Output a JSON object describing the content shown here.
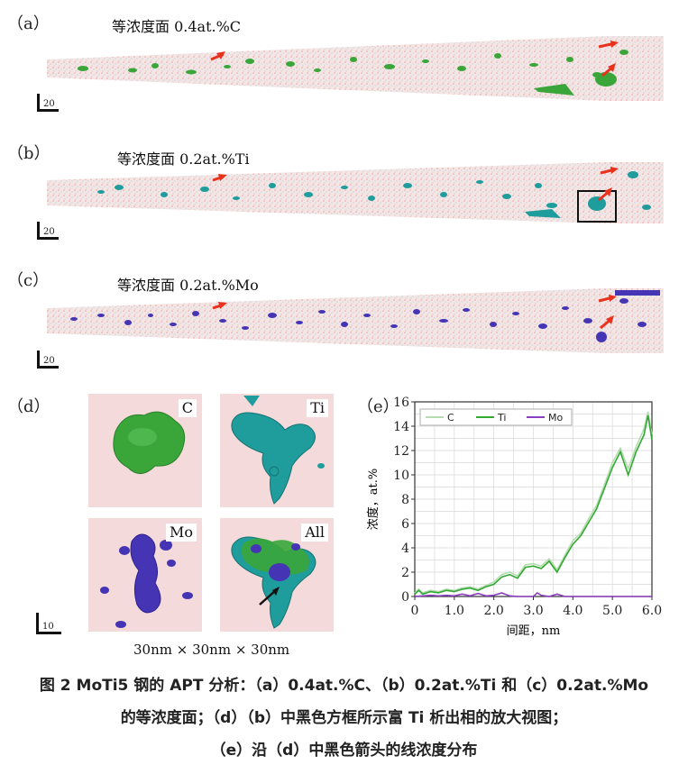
{
  "panels": {
    "a": {
      "letter": "（a）",
      "title": "等浓度面 0.4at.%C"
    },
    "b": {
      "letter": "（b）",
      "title": "等浓度面 0.2at.%Ti"
    },
    "c": {
      "letter": "（c）",
      "title": "等浓度面 0.2at.%Mo"
    },
    "d": {
      "letter": "（d）"
    },
    "e": {
      "letter": "（e）"
    }
  },
  "scale_a": "20",
  "scale_b": "20",
  "scale_c": "20",
  "scale_d": "10",
  "cubes": {
    "c": "C",
    "ti": "Ti",
    "mo": "Mo",
    "all": "All"
  },
  "cube_dims": "30nm × 30nm × 30nm",
  "colors": {
    "carbon": "#3aa63a",
    "titanium": "#1f9c9c",
    "molybdenum": "#4535b5",
    "arrow": "#e8321e",
    "matrix": "#f4d8d8"
  },
  "chart_data": {
    "type": "line",
    "xlabel": "间距，nm",
    "ylabel": "浓度，at.%",
    "xlim": [
      0,
      6
    ],
    "ylim": [
      0,
      16
    ],
    "xticks": [
      "0",
      "1.0",
      "2.0",
      "3.0",
      "4.0",
      "5.0",
      "6.0"
    ],
    "yticks": [
      "0",
      "2",
      "4",
      "6",
      "8",
      "10",
      "12",
      "14",
      "16"
    ],
    "grid": true,
    "legend_position": "top-left",
    "series": [
      {
        "name": "C",
        "color": "#b4dcb0",
        "x": [
          0,
          0.1,
          0.2,
          0.4,
          0.6,
          0.8,
          1.0,
          1.2,
          1.4,
          1.6,
          1.8,
          2.0,
          2.2,
          2.4,
          2.6,
          2.8,
          3.0,
          3.2,
          3.4,
          3.6,
          3.8,
          4.0,
          4.2,
          4.4,
          4.6,
          4.8,
          5.0,
          5.2,
          5.4,
          5.6,
          5.8,
          5.9,
          6.0
        ],
        "y": [
          0.3,
          0.6,
          0.3,
          0.5,
          0.4,
          0.6,
          0.5,
          0.7,
          0.8,
          0.6,
          0.9,
          1.2,
          1.8,
          2.0,
          1.7,
          2.6,
          2.7,
          2.5,
          3.1,
          2.2,
          3.4,
          4.6,
          5.2,
          6.4,
          7.5,
          9.2,
          11.0,
          12.2,
          10.5,
          12.3,
          13.8,
          15.2,
          13.3
        ]
      },
      {
        "name": "Ti",
        "color": "#32a832",
        "x": [
          0,
          0.1,
          0.2,
          0.4,
          0.6,
          0.8,
          1.0,
          1.2,
          1.4,
          1.6,
          1.8,
          2.0,
          2.2,
          2.4,
          2.6,
          2.8,
          3.0,
          3.2,
          3.4,
          3.6,
          3.8,
          4.0,
          4.2,
          4.4,
          4.6,
          4.8,
          5.0,
          5.2,
          5.4,
          5.6,
          5.8,
          5.9,
          6.0
        ],
        "y": [
          0.2,
          0.5,
          0.2,
          0.4,
          0.3,
          0.5,
          0.4,
          0.6,
          0.7,
          0.5,
          0.8,
          1.0,
          1.6,
          1.8,
          1.5,
          2.4,
          2.5,
          2.3,
          2.9,
          2.0,
          3.2,
          4.3,
          5.0,
          6.1,
          7.2,
          8.9,
          10.6,
          11.9,
          10.0,
          11.9,
          13.3,
          14.9,
          12.9
        ]
      },
      {
        "name": "Mo",
        "color": "#8a3fc0",
        "x": [
          0,
          0.2,
          0.4,
          0.6,
          0.8,
          1.0,
          1.2,
          1.4,
          1.6,
          1.8,
          2.0,
          2.2,
          2.4,
          2.6,
          2.8,
          3.0,
          3.1,
          3.2,
          3.4,
          3.6,
          3.8,
          4.0,
          4.5,
          5.0,
          5.5,
          6.0
        ],
        "y": [
          0,
          0.05,
          0.1,
          0.05,
          0.1,
          0.05,
          0.2,
          0.05,
          0.25,
          0.05,
          0.1,
          0.3,
          0.05,
          0,
          0,
          0,
          0.3,
          0.1,
          0,
          0.2,
          0,
          0,
          0,
          0,
          0,
          0
        ]
      }
    ]
  },
  "caption": {
    "line1": "图 2  MoTi5 钢的 APT 分析：（a）0.4at.%C、（b）0.2at.%Ti 和（c）0.2at.%Mo",
    "line2": "的等浓度面；（d）（b）中黑色方框所示富 Ti 析出相的放大视图；",
    "line3": "（e）沿（d）中黑色箭头的线浓度分布"
  }
}
